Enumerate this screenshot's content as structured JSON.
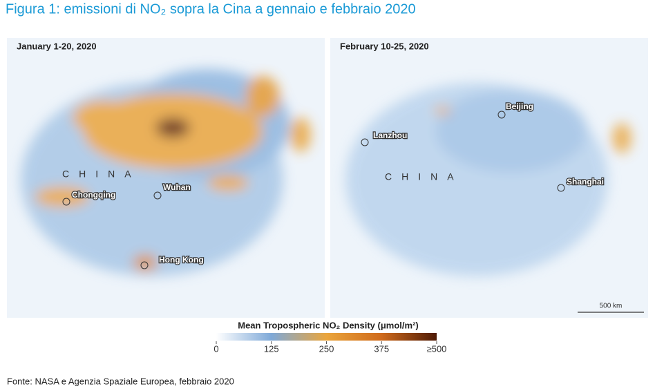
{
  "header": {
    "title": "Figura 1: emissioni di NO₂ sopra la Cina a gennaio e febbraio 2020"
  },
  "panels": [
    {
      "title": "January 1-20, 2020",
      "labels": [
        "CHINA",
        "Chongqing",
        "Wuhan",
        "Hong Kong"
      ]
    },
    {
      "title": "February 10-25, 2020",
      "labels": [
        "Beijing",
        "Lanzhou",
        "CHINA",
        "Shanghai"
      ],
      "scale_bar": "500 km"
    }
  ],
  "colorbar": {
    "title": "Mean Tropospheric NO₂ Density (μmol/m²)",
    "lim": [
      0,
      500
    ],
    "ticks": [
      0,
      125,
      250,
      375,
      {
        "value": 500,
        "label": "≥500"
      }
    ]
  },
  "footer": {
    "source": "Fonte: NASA e Agenzia Spaziale Europea, febbraio 2020"
  }
}
